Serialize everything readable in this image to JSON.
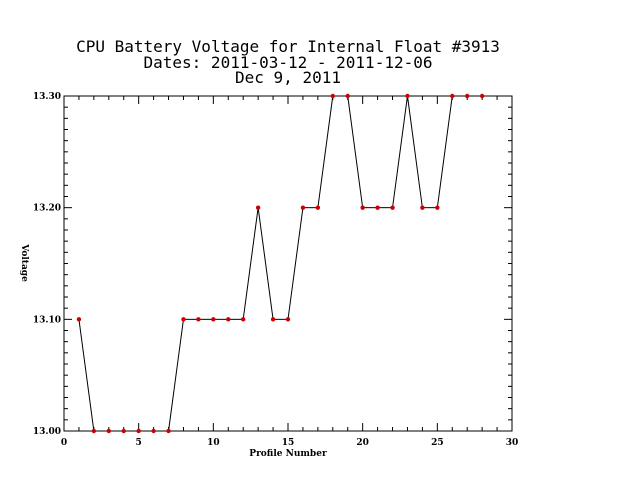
{
  "chart_data": {
    "type": "line",
    "title": [
      "CPU Battery Voltage for Internal Float #3913",
      "Dates:  2011-03-12 -  2011-12-06",
      "Dec  9, 2011"
    ],
    "xlabel": "Profile Number",
    "ylabel": "Voltage",
    "xlim": [
      0,
      30
    ],
    "ylim": [
      13.0,
      13.3
    ],
    "xticks": [
      0,
      5,
      10,
      15,
      20,
      25,
      30
    ],
    "xtick_labels": [
      "0",
      "5",
      "10",
      "15",
      "20",
      "25",
      "30"
    ],
    "yticks": [
      13.0,
      13.1,
      13.2,
      13.3
    ],
    "ytick_labels": [
      "13.00",
      "13.10",
      "13.20",
      "13.30"
    ],
    "grid": false,
    "series": [
      {
        "line_color": "#000000",
        "marker_color": "#cc0000",
        "x": [
          1,
          2,
          3,
          4,
          5,
          6,
          7,
          8,
          9,
          10,
          11,
          12,
          13,
          14,
          15,
          16,
          17,
          18,
          19,
          20,
          21,
          22,
          23,
          24,
          25,
          26,
          27,
          28
        ],
        "y": [
          13.1,
          13.0,
          13.0,
          13.0,
          13.0,
          13.0,
          13.0,
          13.1,
          13.1,
          13.1,
          13.1,
          13.1,
          13.2,
          13.1,
          13.1,
          13.2,
          13.2,
          13.3,
          13.3,
          13.2,
          13.2,
          13.2,
          13.3,
          13.2,
          13.2,
          13.3,
          13.3,
          13.3
        ]
      }
    ]
  }
}
